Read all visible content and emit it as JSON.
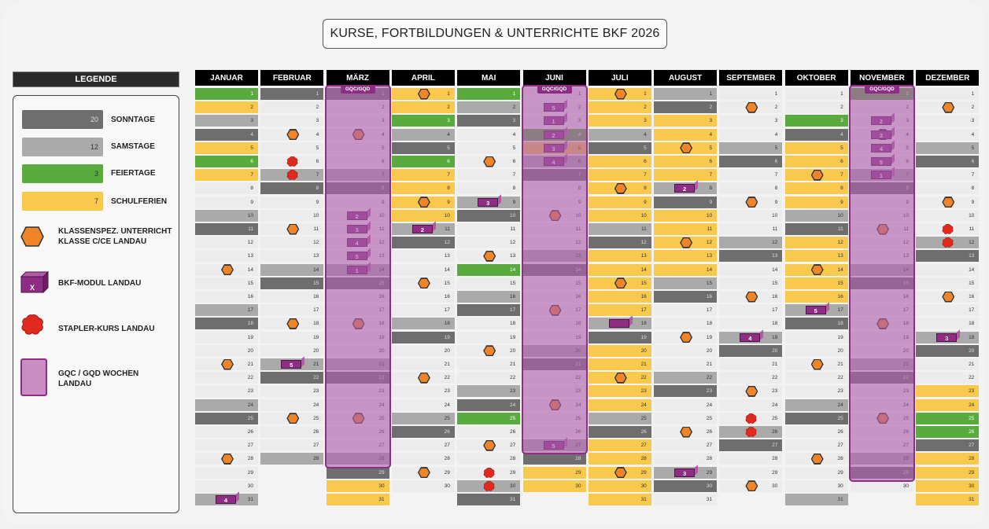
{
  "title": "KURSE, FORTBILDUNGEN & UNTERRICHTE BKF 2026",
  "legend": {
    "header": "LEGENDE",
    "items": [
      {
        "key": "so",
        "count": "20",
        "label": "SONNTAGE",
        "color": "#6e6e6e"
      },
      {
        "key": "sa",
        "count": "12",
        "label": "SAMSTAGE",
        "color": "#aaaaaa"
      },
      {
        "key": "fe",
        "count": "3",
        "label": "FEIERTAGE",
        "color": "#5aab3e"
      },
      {
        "key": "sf",
        "count": "7",
        "label": "SCHULFERIEN",
        "color": "#f8c94c"
      }
    ],
    "klasse_label_1": "KLASSENSPEZ. UNTERRICHT",
    "klasse_label_2": "KLASSE C/CE LANDAU",
    "bkf_x": "X",
    "bkf_label": "BKF-MODUL LANDAU",
    "stapler_label": "STAPLER-KURS LANDAU",
    "gqc_label_1": "GQC / GQD WOCHEN",
    "gqc_label_2": "LANDAU"
  },
  "gqc_tag": "GQC/GQD",
  "months": [
    {
      "name": "JANUAR",
      "days": 31,
      "so": [
        4,
        11,
        18,
        25
      ],
      "sa": [
        3,
        10,
        17,
        24,
        31
      ],
      "fe": [
        1,
        6
      ],
      "sf": [
        2,
        5,
        7
      ],
      "hex": [
        14,
        21,
        28
      ],
      "blob": [],
      "mods": [
        [
          31,
          "4"
        ]
      ]
    },
    {
      "name": "FEBRUAR",
      "days": 28,
      "so": [
        1,
        8,
        15,
        22
      ],
      "sa": [
        7,
        14,
        21,
        28
      ],
      "fe": [],
      "sf": [],
      "hex": [
        4,
        11,
        18,
        25
      ],
      "blob": [
        6,
        7
      ],
      "mods": [
        [
          21,
          "5"
        ]
      ]
    },
    {
      "name": "MÄRZ",
      "days": 31,
      "so": [
        1,
        8,
        15,
        22,
        29
      ],
      "sa": [
        7,
        14,
        21,
        28
      ],
      "fe": [],
      "sf": [
        30,
        31
      ],
      "hex": [
        4,
        18,
        25
      ],
      "blob": [],
      "mods": [
        [
          10,
          "2"
        ],
        [
          11,
          "3"
        ],
        [
          12,
          "4"
        ],
        [
          13,
          "5"
        ],
        [
          14,
          "1"
        ]
      ]
    },
    {
      "name": "APRIL",
      "days": 30,
      "so": [
        5,
        12,
        19,
        26
      ],
      "sa": [
        4,
        11,
        18,
        25
      ],
      "fe": [
        3,
        6
      ],
      "sf": [
        1,
        2,
        7,
        8,
        9,
        10,
        11
      ],
      "hex": [
        1,
        9,
        15,
        22,
        29
      ],
      "blob": [],
      "mods": [
        [
          11,
          "2"
        ]
      ]
    },
    {
      "name": "MAI",
      "days": 31,
      "so": [
        3,
        10,
        17,
        24,
        31
      ],
      "sa": [
        2,
        9,
        16,
        23,
        30
      ],
      "fe": [
        1,
        14,
        25
      ],
      "sf": [],
      "hex": [
        6,
        13,
        20,
        27
      ],
      "blob": [
        29,
        30
      ],
      "mods": [
        [
          9,
          "3"
        ]
      ]
    },
    {
      "name": "JUNI",
      "days": 30,
      "so": [
        7,
        14,
        21,
        28
      ],
      "sa": [
        6,
        13,
        20,
        27
      ],
      "fe": [
        4
      ],
      "sf": [
        5,
        29,
        30
      ],
      "hex": [
        10,
        17,
        24
      ],
      "blob": [],
      "mods": [
        [
          2,
          "5"
        ],
        [
          3,
          "1"
        ],
        [
          4,
          "2"
        ],
        [
          5,
          "3"
        ],
        [
          6,
          "4"
        ],
        [
          27,
          "5"
        ]
      ]
    },
    {
      "name": "JULI",
      "days": 31,
      "so": [
        5,
        12,
        19,
        26
      ],
      "sa": [
        4,
        11,
        18,
        25
      ],
      "fe": [],
      "sf": [
        1,
        2,
        3,
        6,
        7,
        8,
        9,
        10,
        13,
        14,
        15,
        16,
        17,
        20,
        21,
        22,
        23,
        24,
        27,
        28,
        29,
        30,
        31
      ],
      "hex": [
        1,
        8,
        15,
        22,
        29
      ],
      "blob": [],
      "mods": [
        [
          18,
          ""
        ]
      ]
    },
    {
      "name": "AUGUST",
      "days": 31,
      "so": [
        2,
        9,
        16,
        23,
        30
      ],
      "sa": [
        1,
        8,
        15,
        22,
        29
      ],
      "fe": [],
      "sf": [
        3,
        4,
        5,
        6,
        7,
        10,
        11,
        12,
        13,
        14
      ],
      "hex": [
        5,
        12,
        19,
        26
      ],
      "blob": [],
      "mods": [
        [
          8,
          "2"
        ],
        [
          29,
          "3"
        ]
      ]
    },
    {
      "name": "SEPTEMBER",
      "days": 30,
      "so": [
        6,
        13,
        20,
        27
      ],
      "sa": [
        5,
        12,
        19,
        26
      ],
      "fe": [],
      "sf": [],
      "hex": [
        2,
        9,
        16,
        23,
        30
      ],
      "blob": [
        25,
        26
      ],
      "mods": [
        [
          19,
          "4"
        ]
      ]
    },
    {
      "name": "OKTOBER",
      "days": 31,
      "so": [
        4,
        11,
        18,
        25
      ],
      "sa": [
        3,
        10,
        17,
        24,
        31
      ],
      "fe": [
        3
      ],
      "sf": [
        5,
        6,
        7,
        8,
        9,
        12,
        13,
        14,
        15,
        16
      ],
      "hex": [
        7,
        14,
        21,
        28
      ],
      "blob": [],
      "mods": [
        [
          17,
          "5"
        ]
      ]
    },
    {
      "name": "NOVEMBER",
      "days": 30,
      "so": [
        1,
        8,
        15,
        22,
        29
      ],
      "sa": [
        7,
        14,
        21,
        28
      ],
      "fe": [
        1
      ],
      "sf": [],
      "hex": [
        4,
        11,
        18,
        25
      ],
      "blob": [],
      "mods": [
        [
          3,
          "2"
        ],
        [
          4,
          "3"
        ],
        [
          5,
          "4"
        ],
        [
          6,
          "5"
        ],
        [
          7,
          "1"
        ]
      ]
    },
    {
      "name": "DEZEMBER",
      "days": 31,
      "so": [
        6,
        13,
        20,
        27
      ],
      "sa": [
        5,
        12,
        19,
        26
      ],
      "fe": [
        25,
        26
      ],
      "sf": [
        23,
        24,
        28,
        29,
        30,
        31
      ],
      "hex": [
        2,
        9,
        16
      ],
      "blob": [
        11,
        12
      ],
      "mods": [
        [
          19,
          "3"
        ]
      ]
    }
  ],
  "gqc_weeks": [
    {
      "month": 2,
      "from": 1,
      "to": 28,
      "tag": true
    },
    {
      "month": 5,
      "from": 1,
      "to": 27,
      "tag": true
    },
    {
      "month": 10,
      "from": 1,
      "to": 29,
      "tag": true
    }
  ]
}
